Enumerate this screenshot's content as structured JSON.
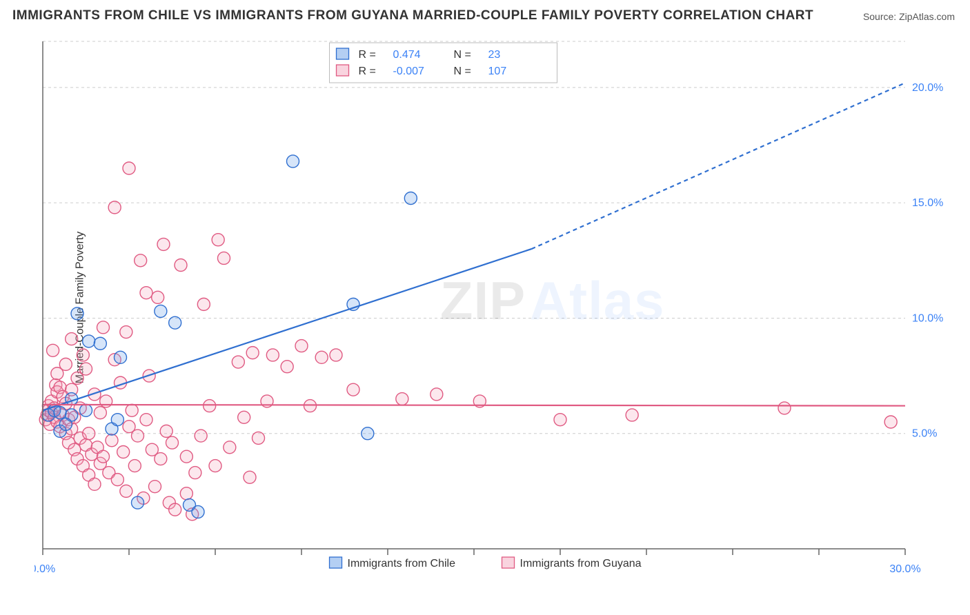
{
  "title": "IMMIGRANTS FROM CHILE VS IMMIGRANTS FROM GUYANA MARRIED-COUPLE FAMILY POVERTY CORRELATION CHART",
  "source": "Source: ZipAtlas.com",
  "ylabel": "Married-Couple Family Poverty",
  "watermark": {
    "part1": "ZIP",
    "part2": "Atlas"
  },
  "chart": {
    "type": "scatter",
    "background_color": "#ffffff",
    "grid_color": "#cccccc",
    "axis_color": "#666666",
    "xlim": [
      0,
      30
    ],
    "ylim": [
      0,
      22
    ],
    "x_ticks_major": [
      0,
      30
    ],
    "x_ticks_minor": [
      3,
      6,
      9,
      12,
      15,
      18,
      21,
      24,
      27
    ],
    "x_tick_labels": {
      "0": "0.0%",
      "30": "30.0%"
    },
    "y_gridlines": [
      5,
      10,
      15,
      20
    ],
    "y_tick_labels": {
      "5": "5.0%",
      "10": "10.0%",
      "15": "15.0%",
      "20": "20.0%"
    },
    "tick_label_color": "#3b82f6",
    "tick_label_fontsize": 16,
    "marker_radius": 9,
    "marker_stroke_width": 1.4,
    "marker_fill_opacity": 0.28,
    "trend_line_width": 2.2,
    "trend_dash": "6 5",
    "series": {
      "chile": {
        "label": "Immigrants from Chile",
        "color_stroke": "#2f6fd0",
        "color_fill": "#6aa0e8",
        "R": "0.474",
        "N": "23",
        "points": [
          [
            0.2,
            5.8
          ],
          [
            0.4,
            6.0
          ],
          [
            0.6,
            5.9
          ],
          [
            0.6,
            5.1
          ],
          [
            1.0,
            5.8
          ],
          [
            1.2,
            10.2
          ],
          [
            1.5,
            6.0
          ],
          [
            1.6,
            9.0
          ],
          [
            2.0,
            8.9
          ],
          [
            2.4,
            5.2
          ],
          [
            2.6,
            5.6
          ],
          [
            2.7,
            8.3
          ],
          [
            3.3,
            2.0
          ],
          [
            4.1,
            10.3
          ],
          [
            4.6,
            9.8
          ],
          [
            5.1,
            1.9
          ],
          [
            5.4,
            1.6
          ],
          [
            8.7,
            16.8
          ],
          [
            10.8,
            10.6
          ],
          [
            11.3,
            5.0
          ],
          [
            12.8,
            15.2
          ],
          [
            1.0,
            6.5
          ],
          [
            0.8,
            5.4
          ]
        ],
        "trend": {
          "solid_from": [
            0,
            6.0
          ],
          "solid_to": [
            17,
            13.0
          ],
          "dash_to": [
            30,
            20.2
          ]
        }
      },
      "guyana": {
        "label": "Immigrants from Guyana",
        "color_stroke": "#e05a82",
        "color_fill": "#f4a9bf",
        "R": "-0.007",
        "N": "107",
        "points": [
          [
            0.1,
            5.6
          ],
          [
            0.15,
            5.8
          ],
          [
            0.2,
            6.0
          ],
          [
            0.2,
            6.2
          ],
          [
            0.25,
            5.4
          ],
          [
            0.3,
            5.9
          ],
          [
            0.3,
            6.4
          ],
          [
            0.35,
            8.6
          ],
          [
            0.4,
            5.7
          ],
          [
            0.4,
            6.1
          ],
          [
            0.45,
            7.1
          ],
          [
            0.5,
            5.5
          ],
          [
            0.5,
            7.6
          ],
          [
            0.5,
            6.8
          ],
          [
            0.6,
            5.3
          ],
          [
            0.6,
            7.0
          ],
          [
            0.7,
            5.8
          ],
          [
            0.7,
            6.6
          ],
          [
            0.8,
            5.0
          ],
          [
            0.8,
            6.3
          ],
          [
            0.8,
            8.0
          ],
          [
            0.9,
            5.6
          ],
          [
            0.9,
            4.6
          ],
          [
            1.0,
            5.2
          ],
          [
            1.0,
            6.9
          ],
          [
            1.0,
            9.1
          ],
          [
            1.1,
            4.3
          ],
          [
            1.1,
            5.7
          ],
          [
            1.2,
            3.9
          ],
          [
            1.2,
            7.4
          ],
          [
            1.3,
            4.8
          ],
          [
            1.3,
            6.1
          ],
          [
            1.4,
            3.6
          ],
          [
            1.5,
            4.5
          ],
          [
            1.5,
            7.8
          ],
          [
            1.6,
            3.2
          ],
          [
            1.6,
            5.0
          ],
          [
            1.7,
            4.1
          ],
          [
            1.8,
            6.7
          ],
          [
            1.8,
            2.8
          ],
          [
            1.9,
            4.4
          ],
          [
            2.0,
            3.7
          ],
          [
            2.0,
            5.9
          ],
          [
            2.1,
            9.6
          ],
          [
            2.1,
            4.0
          ],
          [
            2.2,
            6.4
          ],
          [
            2.3,
            3.3
          ],
          [
            2.4,
            4.7
          ],
          [
            2.5,
            8.2
          ],
          [
            2.5,
            14.8
          ],
          [
            2.6,
            3.0
          ],
          [
            2.7,
            7.2
          ],
          [
            2.8,
            4.2
          ],
          [
            2.9,
            2.5
          ],
          [
            3.0,
            16.5
          ],
          [
            3.0,
            5.3
          ],
          [
            3.1,
            6.0
          ],
          [
            3.2,
            3.6
          ],
          [
            3.3,
            4.9
          ],
          [
            3.4,
            12.5
          ],
          [
            3.5,
            2.2
          ],
          [
            3.6,
            5.6
          ],
          [
            3.7,
            7.5
          ],
          [
            3.8,
            4.3
          ],
          [
            3.9,
            2.7
          ],
          [
            4.0,
            10.9
          ],
          [
            4.1,
            3.9
          ],
          [
            4.2,
            13.2
          ],
          [
            4.3,
            5.1
          ],
          [
            4.4,
            2.0
          ],
          [
            4.5,
            4.6
          ],
          [
            4.6,
            1.7
          ],
          [
            4.8,
            12.3
          ],
          [
            5.0,
            4.0
          ],
          [
            5.0,
            2.4
          ],
          [
            5.2,
            1.5
          ],
          [
            5.3,
            3.3
          ],
          [
            5.5,
            4.9
          ],
          [
            5.6,
            10.6
          ],
          [
            5.8,
            6.2
          ],
          [
            6.0,
            3.6
          ],
          [
            6.1,
            13.4
          ],
          [
            6.3,
            12.6
          ],
          [
            6.5,
            4.4
          ],
          [
            6.8,
            8.1
          ],
          [
            7.0,
            5.7
          ],
          [
            7.2,
            3.1
          ],
          [
            7.3,
            8.5
          ],
          [
            7.5,
            4.8
          ],
          [
            7.8,
            6.4
          ],
          [
            8.0,
            8.4
          ],
          [
            8.5,
            7.9
          ],
          [
            9.0,
            8.8
          ],
          [
            9.3,
            6.2
          ],
          [
            9.7,
            8.3
          ],
          [
            10.2,
            8.4
          ],
          [
            10.8,
            6.9
          ],
          [
            12.5,
            6.5
          ],
          [
            13.7,
            6.7
          ],
          [
            15.2,
            6.4
          ],
          [
            18.0,
            5.6
          ],
          [
            20.5,
            5.8
          ],
          [
            25.8,
            6.1
          ],
          [
            29.5,
            5.5
          ],
          [
            1.4,
            8.4
          ],
          [
            2.9,
            9.4
          ],
          [
            3.6,
            11.1
          ]
        ],
        "trend": {
          "solid_from": [
            0,
            6.25
          ],
          "solid_to": [
            30,
            6.2
          ]
        }
      }
    },
    "legend_top": {
      "rows": [
        {
          "swatch": "chile",
          "R_label": "R =",
          "N_label": "N ="
        },
        {
          "swatch": "guyana",
          "R_label": "R =",
          "N_label": "N ="
        }
      ]
    }
  }
}
